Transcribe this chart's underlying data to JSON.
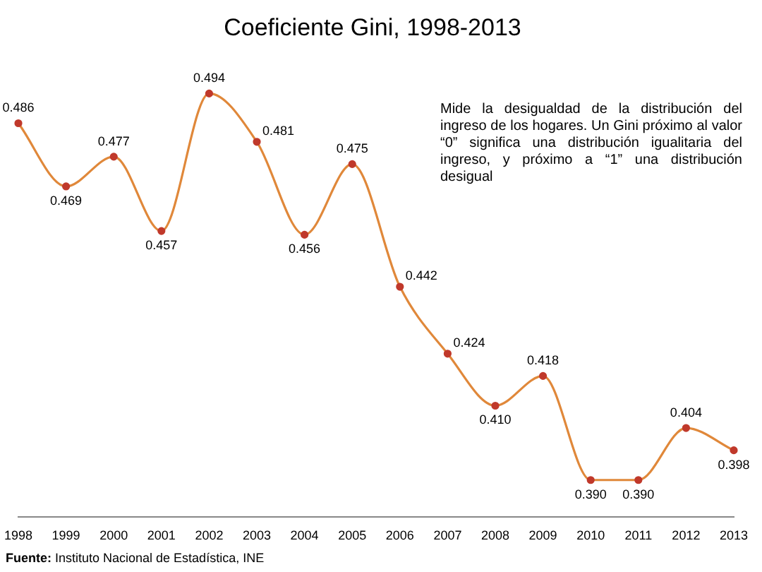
{
  "chart_data": {
    "type": "line",
    "title": "Coeficiente Gini, 1998-2013",
    "categories": [
      "1998",
      "1999",
      "2000",
      "2001",
      "2002",
      "2003",
      "2004",
      "2005",
      "2006",
      "2007",
      "2008",
      "2009",
      "2010",
      "2011",
      "2012",
      "2013"
    ],
    "series": [
      {
        "color": "#e0883a",
        "values": [
          0.486,
          0.469,
          0.477,
          0.457,
          0.494,
          0.481,
          0.456,
          0.475,
          0.442,
          0.424,
          0.41,
          0.418,
          0.39,
          0.39,
          0.404,
          0.398
        ],
        "value_labels": [
          "0.486",
          "0.469",
          "0.477",
          "0.457",
          "0.494",
          "0.481",
          "0.456",
          "0.475",
          "0.442",
          "0.424",
          "0.410",
          "0.418",
          "0.390",
          "0.390",
          "0.404",
          "0.398"
        ]
      }
    ],
    "marker": "circle",
    "grid": false,
    "legend": false,
    "tick_labels": "x",
    "annotations": [
      "Mide la desigualdad de la distribución del ingreso de los hogares. Un Gini próximo al valor “0” significa una distribución igualitaria del ingreso, y próximo a “1” una distribución desigual",
      "Fuente: Instituto Nacional de Estadística, INE"
    ]
  }
}
